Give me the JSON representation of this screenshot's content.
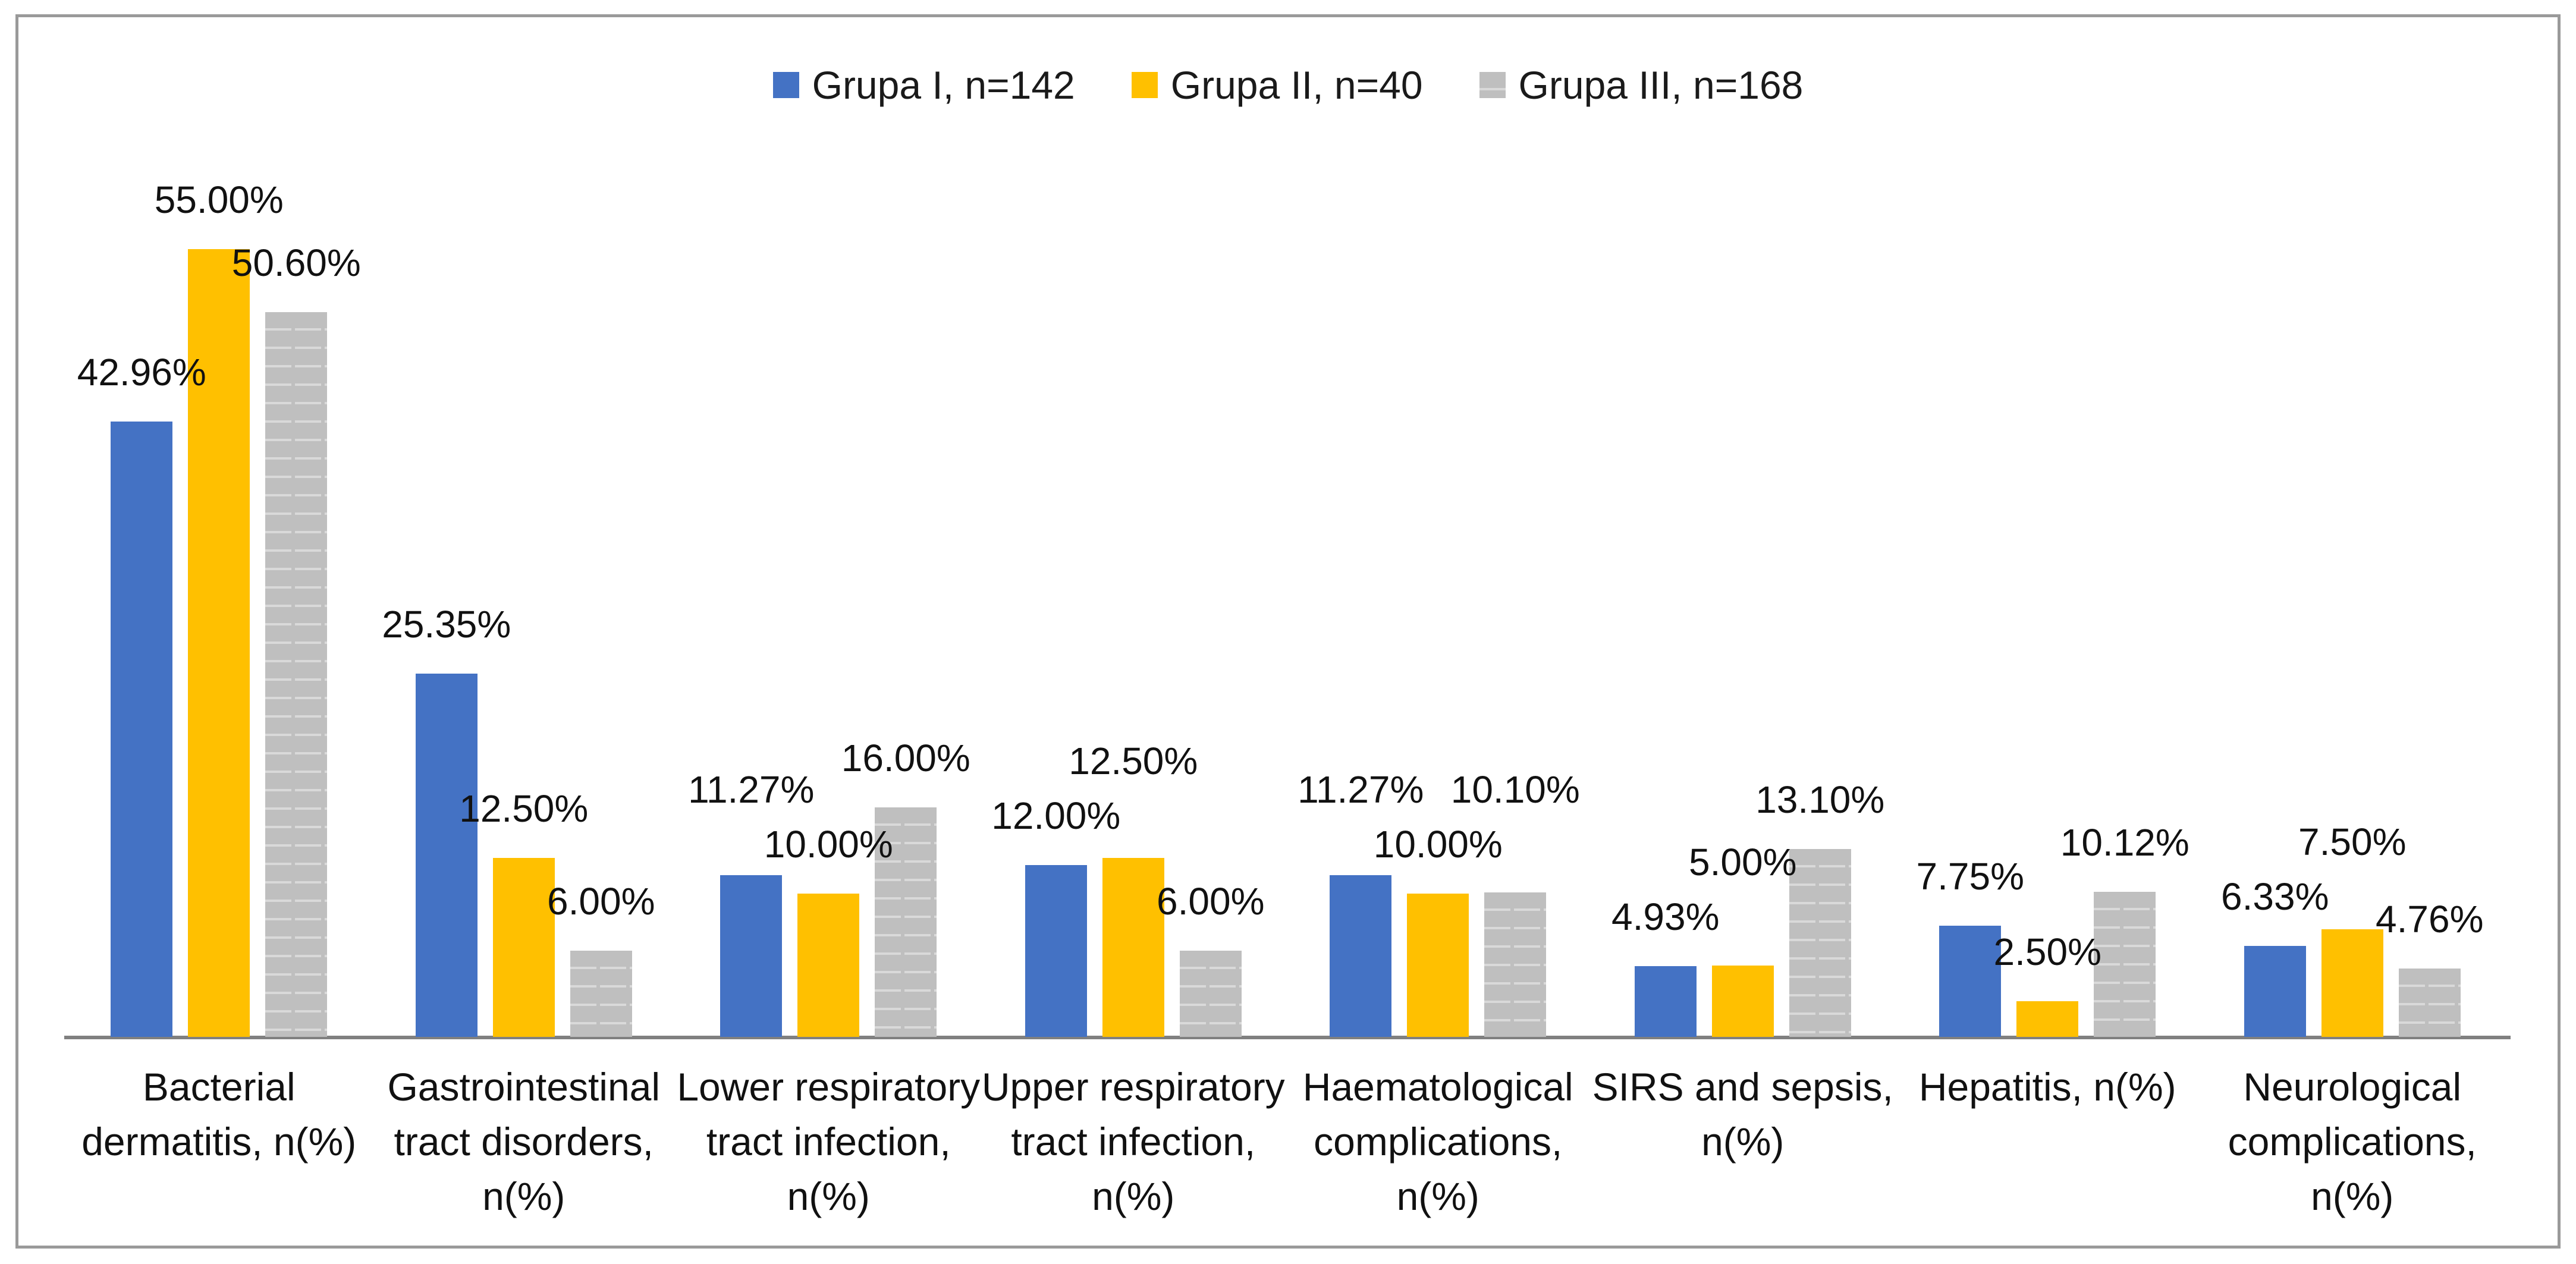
{
  "chart_data": {
    "type": "bar",
    "title": "",
    "xlabel": "",
    "ylabel": "",
    "grid": false,
    "y_axis_visible": false,
    "legend_position": "top",
    "ylim": [
      0,
      60
    ],
    "value_label_format": "0.00%",
    "categories": [
      "Bacterial dermatitis, n(%)",
      "Gastrointestinal tract disorders, n(%)",
      "Lower respiratory tract infection, n(%)",
      "Upper respiratory tract infection, n(%)",
      "Haematological complications, n(%)",
      "SIRS and sepsis, n(%)",
      "Hepatitis, n(%)",
      "Neurological complications, n(%)"
    ],
    "series": [
      {
        "name": "Grupa I, n=142",
        "color": "#4472C4",
        "pattern": "solid",
        "values": [
          42.96,
          25.35,
          11.27,
          12.0,
          11.27,
          4.93,
          7.75,
          6.33
        ]
      },
      {
        "name": "Grupa II, n=40",
        "color": "#FFC000",
        "pattern": "solid",
        "values": [
          55.0,
          12.5,
          10.0,
          12.5,
          10.0,
          5.0,
          2.5,
          7.5
        ]
      },
      {
        "name": "Grupa III, n=168",
        "color": "#BFBFBF",
        "pattern": "horizontal-dashed-stripes",
        "values": [
          50.6,
          6.0,
          16.0,
          6.0,
          10.1,
          13.1,
          10.12,
          4.76
        ]
      }
    ]
  },
  "colors": {
    "background": "#FFFFFF",
    "frame_border": "#9A9A9A",
    "axis_line": "#808080",
    "label_text": "#111111",
    "gray_stripe": "#D9D9D9"
  }
}
